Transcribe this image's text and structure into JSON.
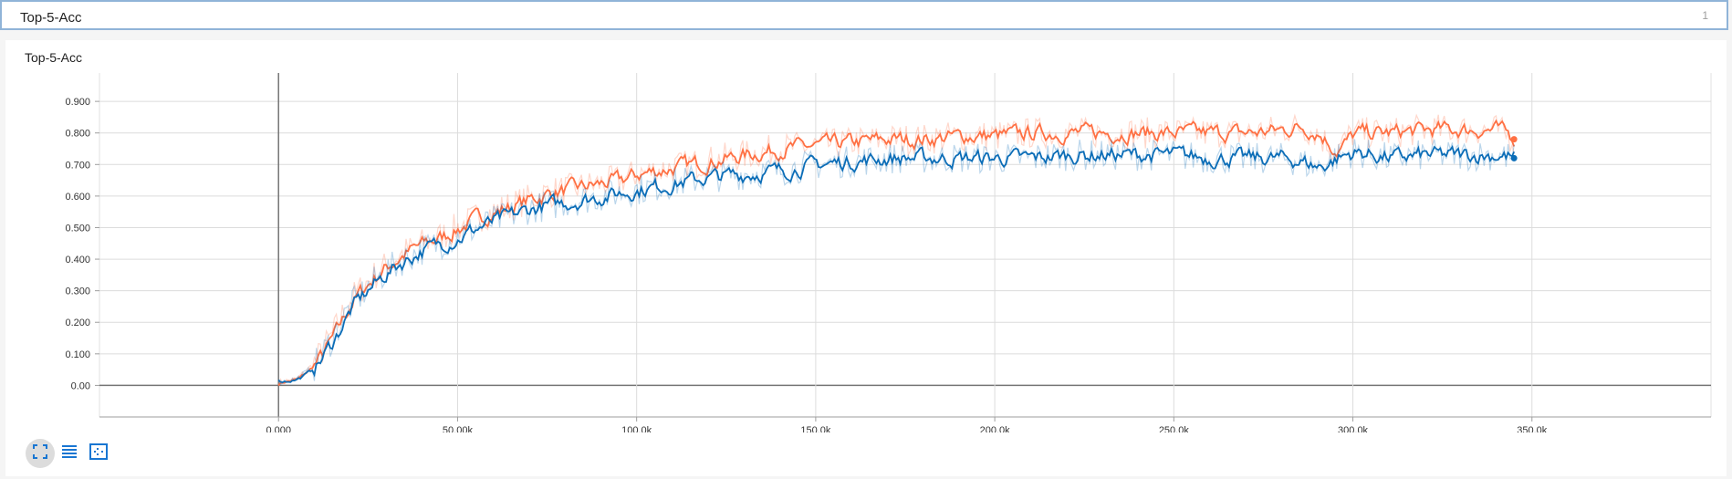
{
  "group": {
    "title": "Top-5-Acc",
    "count": "1"
  },
  "card": {
    "title": "Top-5-Acc"
  },
  "controls": [
    {
      "name": "fit-domain-icon"
    },
    {
      "name": "toggle-log-scale-icon"
    },
    {
      "name": "fit-to-data-icon"
    }
  ],
  "colors": {
    "series_a": "#ff7043",
    "series_b": "#0b6db7",
    "accent": "#1976d2"
  },
  "chart_data": {
    "type": "line",
    "title": "Top-5-Acc",
    "xlabel": "",
    "ylabel": "",
    "xlim": [
      -50000,
      400000
    ],
    "ylim": [
      -0.1,
      0.99
    ],
    "x_ticks": [
      {
        "v": 0,
        "label": "0.000"
      },
      {
        "v": 50000,
        "label": "50.00k"
      },
      {
        "v": 100000,
        "label": "100.0k"
      },
      {
        "v": 150000,
        "label": "150.0k"
      },
      {
        "v": 200000,
        "label": "200.0k"
      },
      {
        "v": 250000,
        "label": "250.0k"
      },
      {
        "v": 300000,
        "label": "300.0k"
      },
      {
        "v": 350000,
        "label": "350.0k"
      }
    ],
    "y_ticks": [
      {
        "v": 0,
        "label": "0.00"
      },
      {
        "v": 0.1,
        "label": "0.100"
      },
      {
        "v": 0.2,
        "label": "0.200"
      },
      {
        "v": 0.3,
        "label": "0.300"
      },
      {
        "v": 0.4,
        "label": "0.400"
      },
      {
        "v": 0.5,
        "label": "0.500"
      },
      {
        "v": 0.6,
        "label": "0.600"
      },
      {
        "v": 0.7,
        "label": "0.700"
      },
      {
        "v": 0.8,
        "label": "0.800"
      },
      {
        "v": 0.9,
        "label": "0.900"
      }
    ],
    "grid": true,
    "series": [
      {
        "color": "#ff7043",
        "x": [
          0,
          5000,
          10000,
          15000,
          20000,
          25000,
          30000,
          35000,
          40000,
          45000,
          50000,
          55000,
          60000,
          65000,
          70000,
          75000,
          80000,
          85000,
          90000,
          95000,
          100000,
          110000,
          120000,
          130000,
          140000,
          150000,
          160000,
          170000,
          180000,
          190000,
          200000,
          210000,
          220000,
          230000,
          240000,
          250000,
          260000,
          270000,
          280000,
          285000,
          290000,
          295000,
          300000,
          310000,
          320000,
          330000,
          340000,
          345000
        ],
        "y": [
          0.01,
          0.02,
          0.07,
          0.16,
          0.27,
          0.33,
          0.38,
          0.42,
          0.45,
          0.47,
          0.5,
          0.53,
          0.55,
          0.57,
          0.59,
          0.61,
          0.62,
          0.63,
          0.64,
          0.65,
          0.67,
          0.69,
          0.71,
          0.73,
          0.75,
          0.76,
          0.77,
          0.78,
          0.78,
          0.79,
          0.79,
          0.8,
          0.8,
          0.8,
          0.8,
          0.8,
          0.8,
          0.8,
          0.81,
          0.82,
          0.8,
          0.74,
          0.8,
          0.8,
          0.81,
          0.81,
          0.81,
          0.78
        ]
      },
      {
        "color": "#0b6db7",
        "x": [
          0,
          5000,
          10000,
          15000,
          20000,
          25000,
          30000,
          35000,
          40000,
          45000,
          50000,
          55000,
          60000,
          65000,
          70000,
          75000,
          80000,
          85000,
          90000,
          95000,
          100000,
          110000,
          120000,
          130000,
          140000,
          150000,
          160000,
          170000,
          180000,
          190000,
          200000,
          210000,
          220000,
          230000,
          240000,
          250000,
          260000,
          270000,
          280000,
          285000,
          290000,
          295000,
          300000,
          310000,
          320000,
          330000,
          340000,
          345000
        ],
        "y": [
          0.01,
          0.02,
          0.06,
          0.15,
          0.25,
          0.31,
          0.36,
          0.4,
          0.43,
          0.45,
          0.47,
          0.5,
          0.52,
          0.54,
          0.56,
          0.57,
          0.58,
          0.59,
          0.6,
          0.61,
          0.62,
          0.64,
          0.66,
          0.67,
          0.68,
          0.7,
          0.71,
          0.72,
          0.72,
          0.72,
          0.72,
          0.72,
          0.73,
          0.73,
          0.73,
          0.73,
          0.72,
          0.72,
          0.72,
          0.71,
          0.69,
          0.72,
          0.74,
          0.72,
          0.73,
          0.73,
          0.73,
          0.72
        ]
      }
    ]
  }
}
